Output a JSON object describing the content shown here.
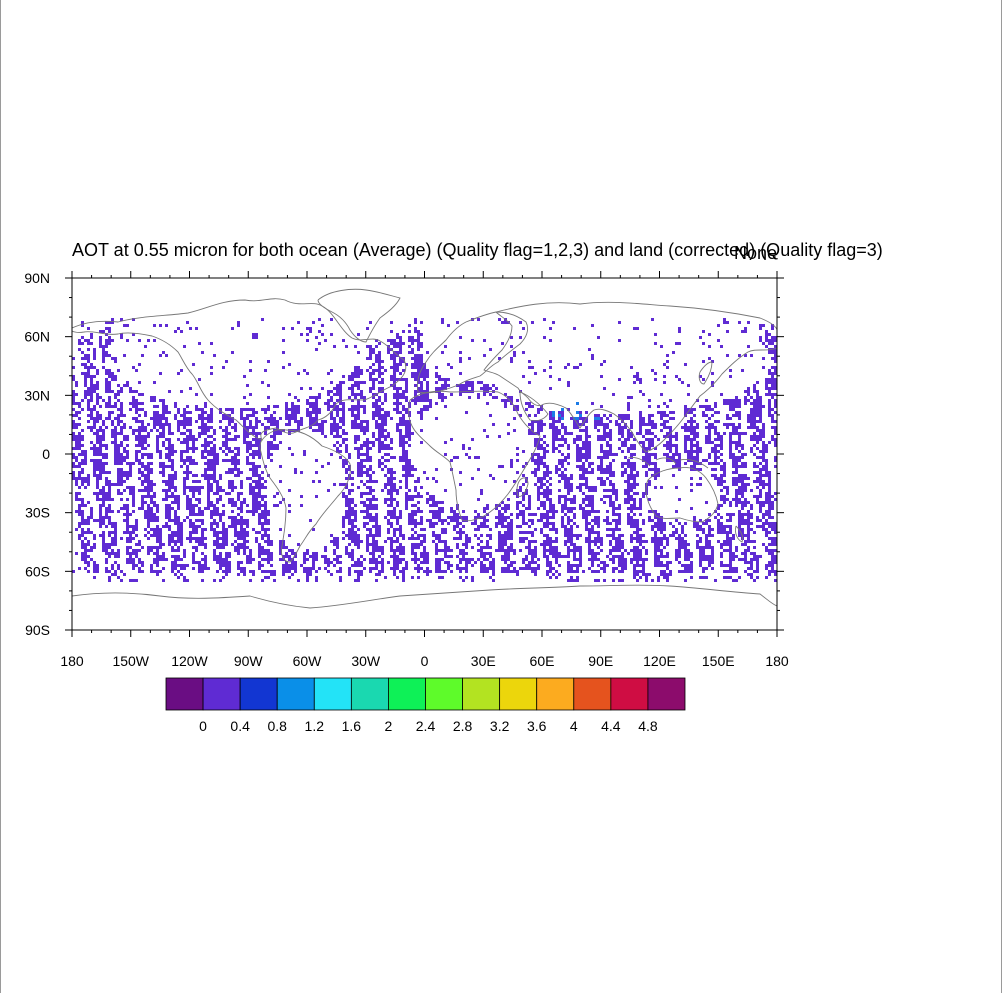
{
  "title": "AOT at 0.55 micron for both ocean (Average) (Quality flag=1,2,3) and land (corrected) (Quality flag=3)",
  "right_label": "None",
  "map": {
    "projection": "cylindrical-equidistant",
    "lon_range": [
      -180,
      180
    ],
    "lat_range": [
      -90,
      90
    ],
    "lat_ticks": [
      {
        "value": 90,
        "label": "90N"
      },
      {
        "value": 60,
        "label": "60N"
      },
      {
        "value": 30,
        "label": "30N"
      },
      {
        "value": 0,
        "label": "0"
      },
      {
        "value": -30,
        "label": "30S"
      },
      {
        "value": -60,
        "label": "60S"
      },
      {
        "value": -90,
        "label": "90S"
      }
    ],
    "lon_ticks": [
      {
        "value": -180,
        "label": "180"
      },
      {
        "value": -150,
        "label": "150W"
      },
      {
        "value": -120,
        "label": "120W"
      },
      {
        "value": -90,
        "label": "90W"
      },
      {
        "value": -60,
        "label": "60W"
      },
      {
        "value": -30,
        "label": "30W"
      },
      {
        "value": 0,
        "label": "0"
      },
      {
        "value": 30,
        "label": "30E"
      },
      {
        "value": 60,
        "label": "60E"
      },
      {
        "value": 90,
        "label": "90E"
      },
      {
        "value": 120,
        "label": "120E"
      },
      {
        "value": 150,
        "label": "150E"
      },
      {
        "value": 180,
        "label": "180"
      }
    ],
    "coast_color": "#777777",
    "data_fill_color": "#5f2bd3",
    "high_aot_color": "#1c7be6"
  },
  "colorbar": {
    "colors": [
      "#6a0d83",
      "#5f2bd3",
      "#1236d2",
      "#0a8fe8",
      "#23e3f7",
      "#1ad8b0",
      "#0ef157",
      "#5efb2a",
      "#b3e321",
      "#ecd60c",
      "#fcab1f",
      "#e5531e",
      "#cf0d43",
      "#8c0c6c"
    ],
    "labels": [
      "0",
      "0.4",
      "0.8",
      "1.2",
      "1.6",
      "2",
      "2.4",
      "2.8",
      "3.2",
      "3.6",
      "4",
      "4.4",
      "4.8"
    ]
  }
}
